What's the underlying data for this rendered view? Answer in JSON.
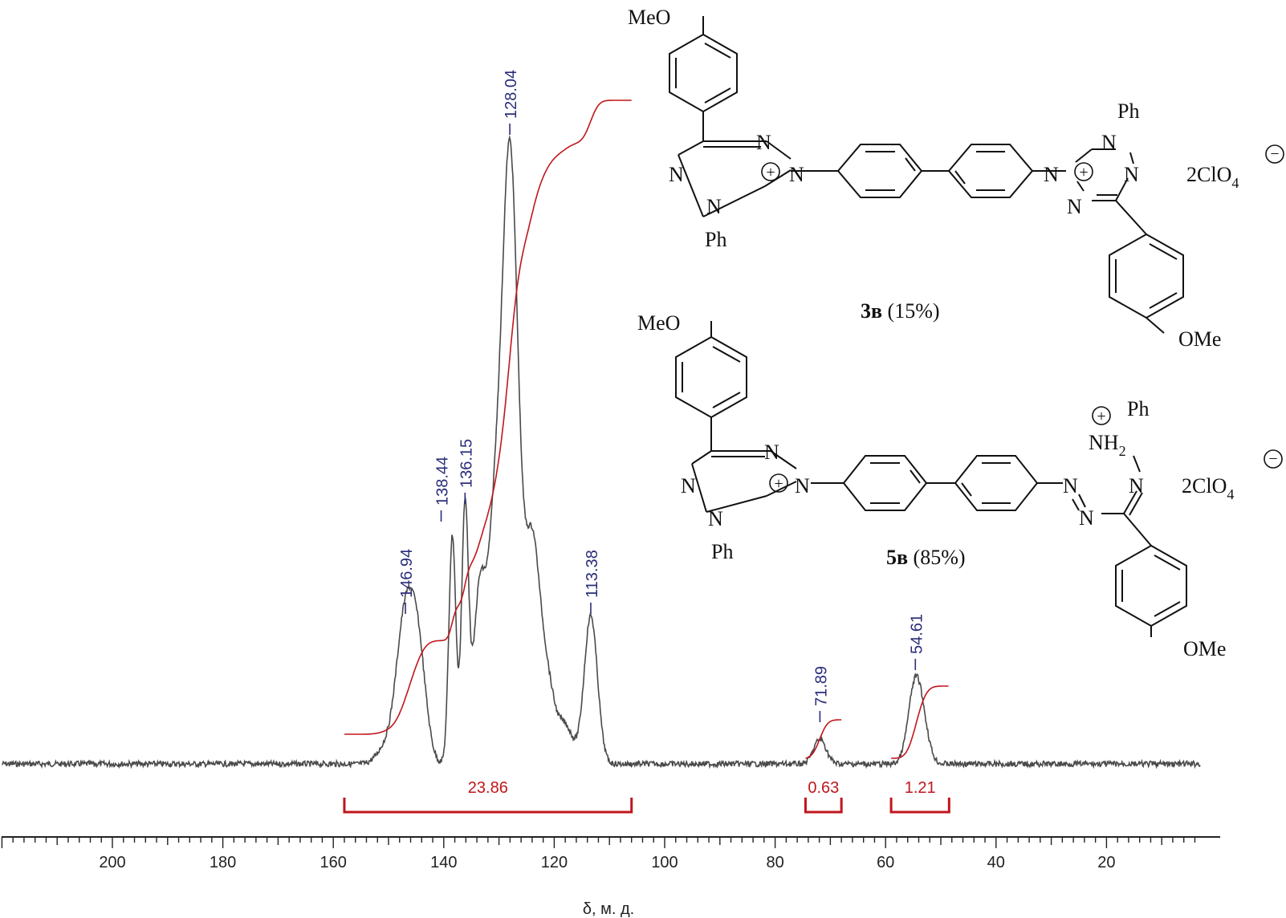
{
  "colors": {
    "spectrum": "#4a4a4a",
    "integral": "#c0161c",
    "peak_label": "#2b2d7a",
    "axis": "#222222",
    "structure": "#111111"
  },
  "chart_data": {
    "type": "line",
    "title": "",
    "xlabel": "δ, м. д.",
    "ylabel": "",
    "xlim": [
      220,
      3
    ],
    "x_reversed": true,
    "x_ticks": [
      200,
      180,
      160,
      140,
      120,
      100,
      80,
      60,
      40,
      20
    ],
    "x_tick_labels": [
      "200",
      "180",
      "160",
      "140",
      "120",
      "100",
      "80",
      "60",
      "40",
      "20"
    ],
    "grid": false,
    "peaks": [
      {
        "shift": 146.94,
        "label": "146.94",
        "rel_height": 0.24
      },
      {
        "shift": 138.44,
        "label": "138.44",
        "rel_height": 0.37
      },
      {
        "shift": 136.15,
        "label": "136.15",
        "rel_height": 0.41
      },
      {
        "shift": 128.04,
        "label": "128.04",
        "rel_height": 1.0
      },
      {
        "shift": 113.38,
        "label": "113.38",
        "rel_height": 0.24
      },
      {
        "shift": 71.89,
        "label": "71.89",
        "rel_height": 0.04
      },
      {
        "shift": 54.61,
        "label": "54.61",
        "rel_height": 0.13
      }
    ],
    "integrals": [
      {
        "from": 158,
        "to": 106,
        "value": "23.86"
      },
      {
        "from": 74.5,
        "to": 68,
        "value": "0.63"
      },
      {
        "from": 59,
        "to": 48.5,
        "value": "1.21"
      }
    ]
  },
  "structures": {
    "compound_3": {
      "number": "3в",
      "yield": "(15%)"
    },
    "compound_5": {
      "number": "5в",
      "yield": "(85%)"
    },
    "meo": "MeO",
    "ome": "OMe",
    "ph": "Ph",
    "n": "N",
    "nh2": "NH",
    "nh2_sub": "2",
    "counterion_main": "2ClO",
    "counterion_sub": "4",
    "plus": "+",
    "minus": "−"
  }
}
